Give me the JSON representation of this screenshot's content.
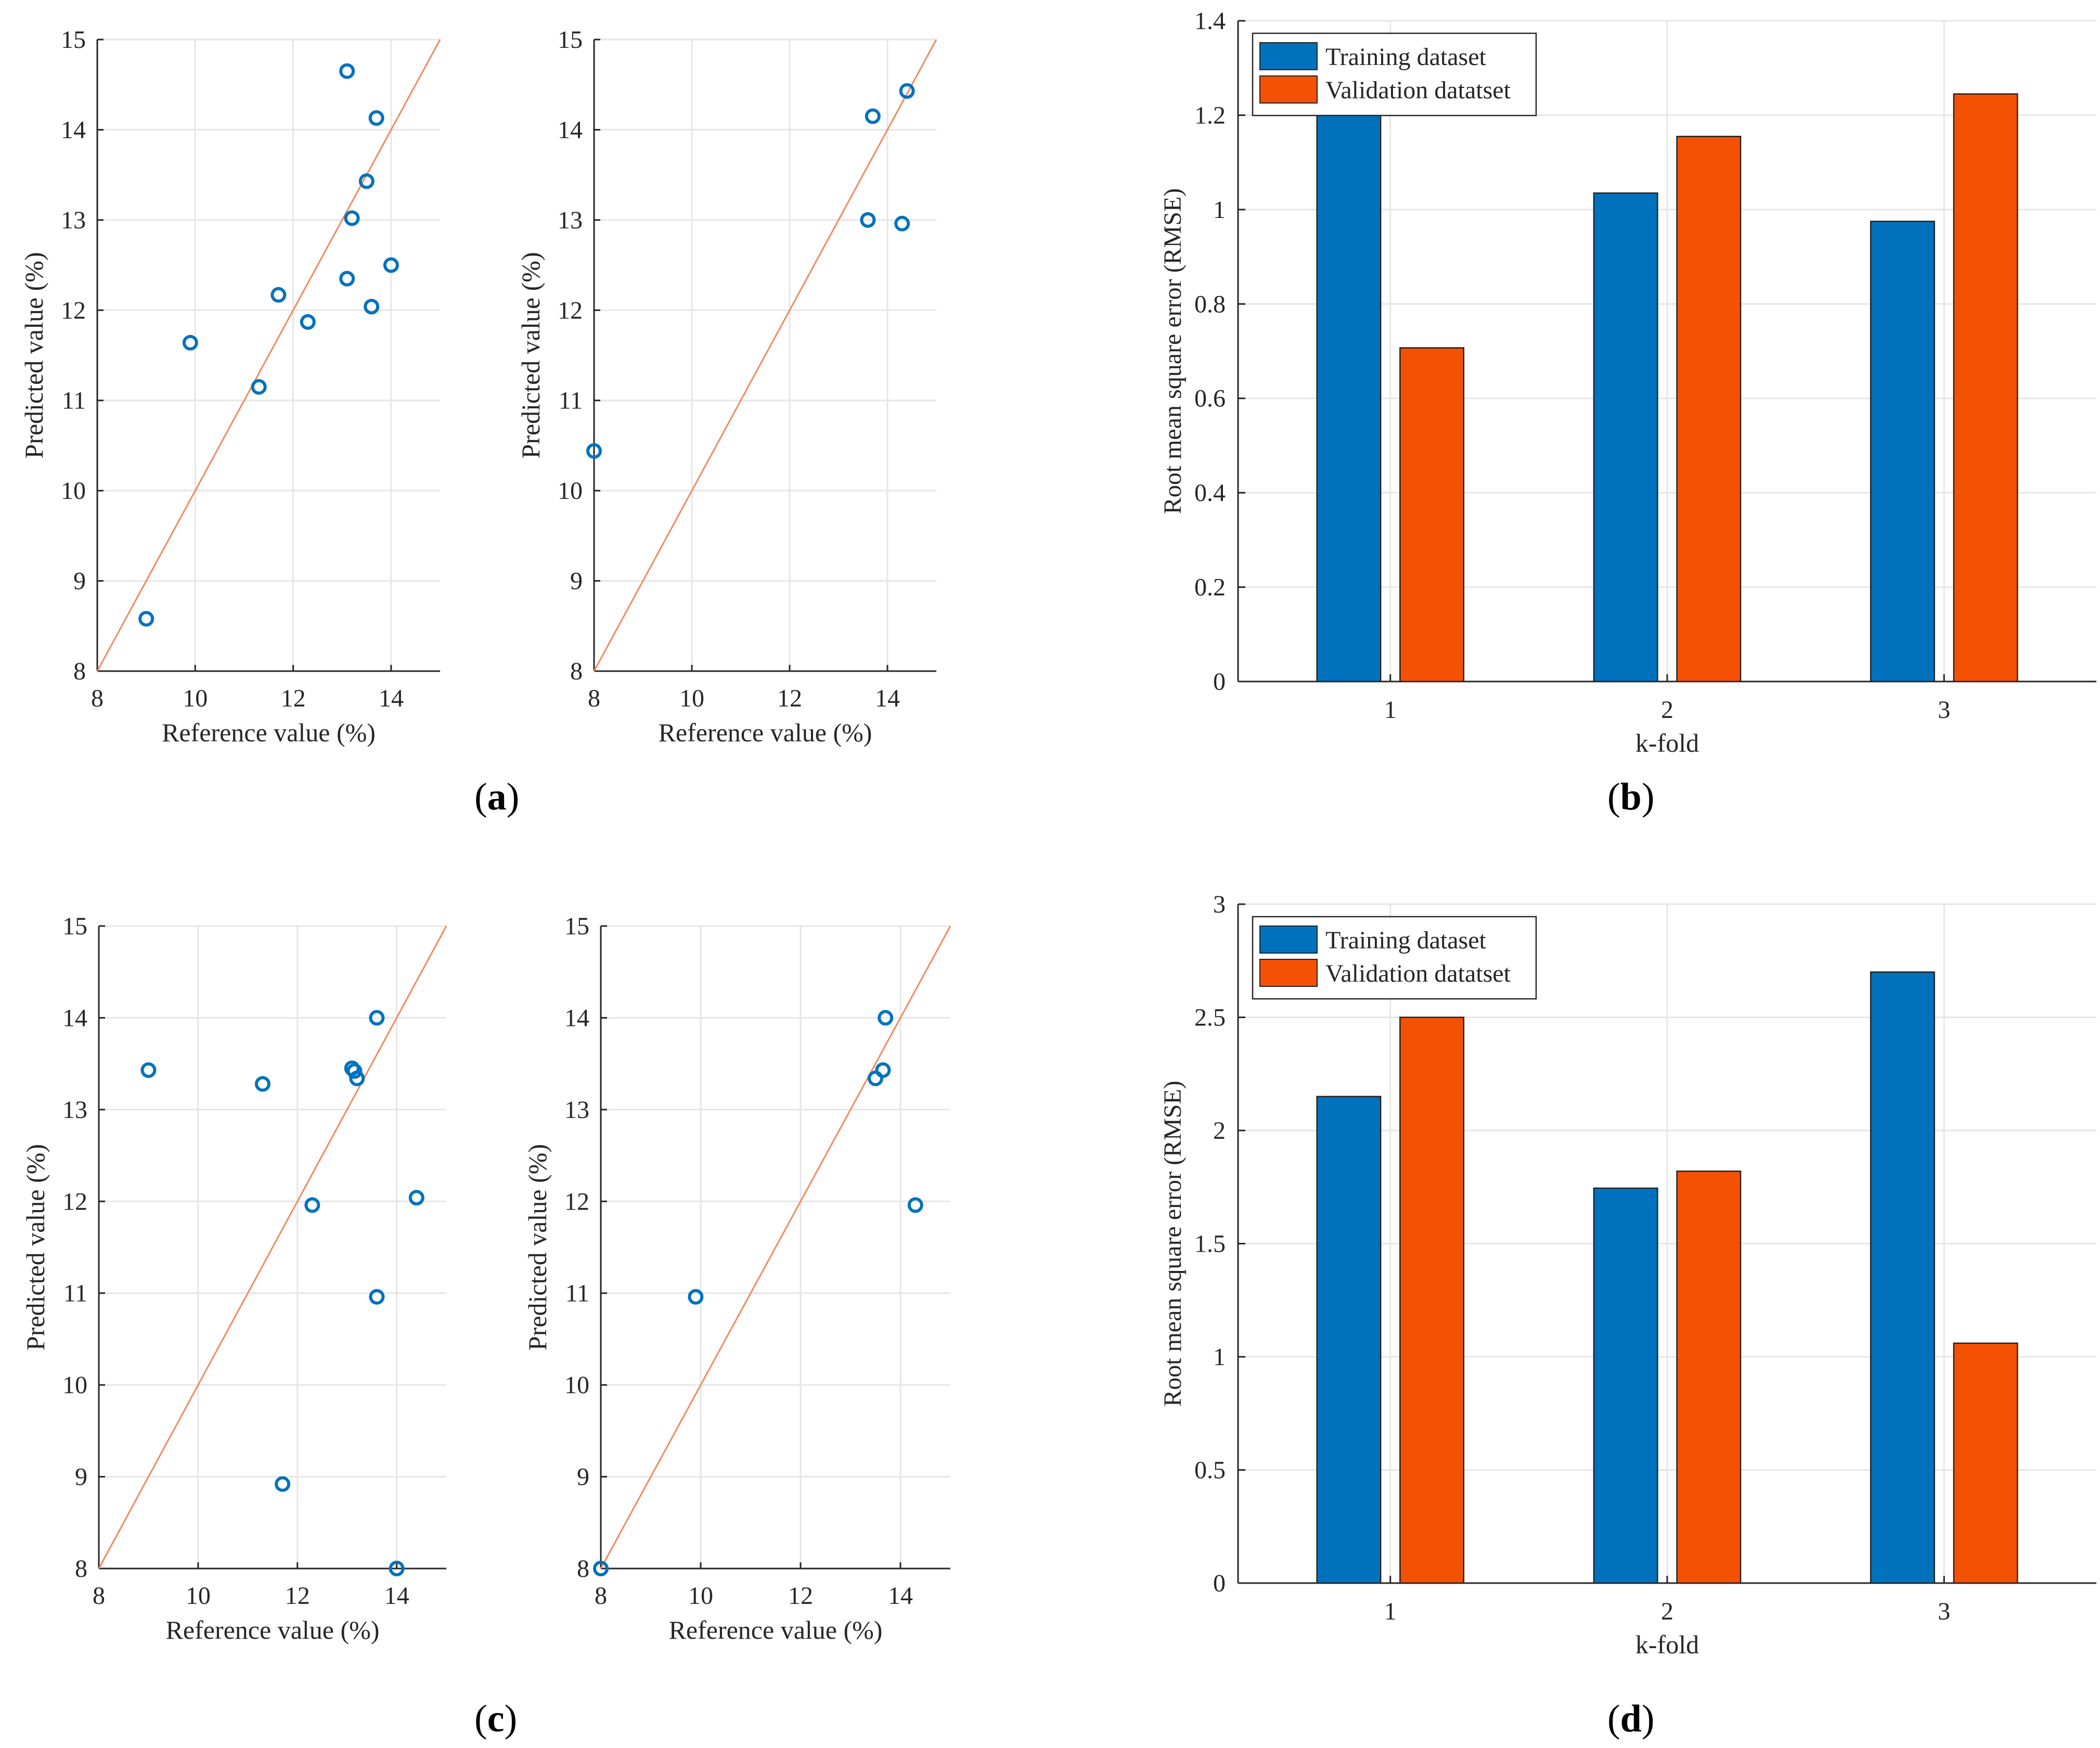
{
  "colors": {
    "marker": "#0072BD",
    "identity_line": "#F08A60",
    "training": "#0072BD",
    "validation": "#F55105",
    "grid": "#E6E6E6",
    "axis": "#262626"
  },
  "panel_labels": {
    "a": {
      "open": "(",
      "letter": "a",
      "close": ")"
    },
    "b": {
      "open": "(",
      "letter": "b",
      "close": ")"
    },
    "c": {
      "open": "(",
      "letter": "c",
      "close": ")"
    },
    "d": {
      "open": "(",
      "letter": "d",
      "close": ")"
    }
  },
  "chart_data": [
    {
      "id": "a-left",
      "type": "scatter",
      "xlabel": "Reference value (%)",
      "ylabel": "Predicted value (%)",
      "xlim": [
        8,
        15
      ],
      "ylim": [
        8,
        15
      ],
      "xticks": [
        8,
        10,
        12,
        14
      ],
      "yticks": [
        8,
        9,
        10,
        11,
        12,
        13,
        14,
        15
      ],
      "identity_line": true,
      "points": [
        [
          9.0,
          8.58
        ],
        [
          9.9,
          11.64
        ],
        [
          11.3,
          11.15
        ],
        [
          11.7,
          12.17
        ],
        [
          12.3,
          11.87
        ],
        [
          13.1,
          14.65
        ],
        [
          13.1,
          12.35
        ],
        [
          13.2,
          13.02
        ],
        [
          13.5,
          13.43
        ],
        [
          13.6,
          12.04
        ],
        [
          13.7,
          14.13
        ],
        [
          14.0,
          12.5
        ]
      ]
    },
    {
      "id": "a-right",
      "type": "scatter",
      "xlabel": "Reference value (%)",
      "ylabel": "Predicted value (%)",
      "xlim": [
        8,
        15
      ],
      "ylim": [
        8,
        15
      ],
      "xticks": [
        8,
        10,
        12,
        14
      ],
      "yticks": [
        8,
        9,
        10,
        11,
        12,
        13,
        14,
        15
      ],
      "identity_line": true,
      "points": [
        [
          8.0,
          10.44
        ],
        [
          13.6,
          13.0
        ],
        [
          13.7,
          14.15
        ],
        [
          14.3,
          12.96
        ],
        [
          14.4,
          14.43
        ]
      ]
    },
    {
      "id": "b",
      "type": "bar",
      "xlabel": "k-fold",
      "ylabel": "Root mean square error (RMSE)",
      "categories": [
        "1",
        "2",
        "3"
      ],
      "ylim": [
        0,
        1.4
      ],
      "yticks": [
        "0",
        "0.2",
        "0.4",
        "0.6",
        "0.8",
        "1",
        "1.2",
        "1.4"
      ],
      "series": [
        {
          "name": "Training dataset",
          "values": [
            1.2,
            1.035,
            0.975
          ]
        },
        {
          "name": "Validation datatset",
          "values": [
            0.707,
            1.155,
            1.245
          ]
        }
      ],
      "legend": "top-left"
    },
    {
      "id": "c-left",
      "type": "scatter",
      "xlabel": "Reference value (%)",
      "ylabel": "Predicted value (%)",
      "xlim": [
        8,
        15
      ],
      "ylim": [
        8,
        15
      ],
      "xticks": [
        8,
        10,
        12,
        14
      ],
      "yticks": [
        8,
        9,
        10,
        11,
        12,
        13,
        14,
        15
      ],
      "identity_line": true,
      "points": [
        [
          9.0,
          13.43
        ],
        [
          11.3,
          13.28
        ],
        [
          11.7,
          8.92
        ],
        [
          12.3,
          11.96
        ],
        [
          13.1,
          13.45
        ],
        [
          13.15,
          13.42
        ],
        [
          13.2,
          13.34
        ],
        [
          13.6,
          14.0
        ],
        [
          13.6,
          10.96
        ],
        [
          14.0,
          8.0
        ],
        [
          14.4,
          12.04
        ]
      ]
    },
    {
      "id": "c-right",
      "type": "scatter",
      "xlabel": "Reference value (%)",
      "ylabel": "Predicted value (%)",
      "xlim": [
        8,
        15
      ],
      "ylim": [
        8,
        15
      ],
      "xticks": [
        8,
        10,
        12,
        14
      ],
      "yticks": [
        8,
        9,
        10,
        11,
        12,
        13,
        14,
        15
      ],
      "identity_line": true,
      "points": [
        [
          8.0,
          8.0
        ],
        [
          9.9,
          10.96
        ],
        [
          13.5,
          13.34
        ],
        [
          13.65,
          13.43
        ],
        [
          13.7,
          14.0
        ],
        [
          14.3,
          11.96
        ]
      ]
    },
    {
      "id": "d",
      "type": "bar",
      "xlabel": "k-fold",
      "ylabel": "Root mean square error (RMSE)",
      "categories": [
        "1",
        "2",
        "3"
      ],
      "ylim": [
        0,
        3
      ],
      "yticks": [
        "0",
        "0.5",
        "1",
        "1.5",
        "2",
        "2.5",
        "3"
      ],
      "series": [
        {
          "name": "Training dataset",
          "values": [
            2.15,
            1.745,
            2.7
          ]
        },
        {
          "name": "Validation datatset",
          "values": [
            2.5,
            1.82,
            1.06
          ]
        }
      ],
      "legend": "top-left"
    }
  ]
}
